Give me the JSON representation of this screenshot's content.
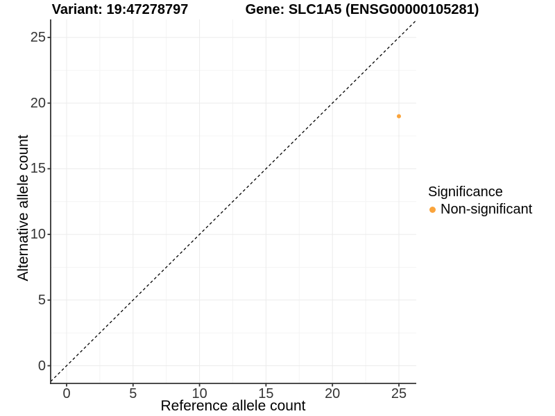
{
  "colors": {
    "background": "#ffffff",
    "axis": "#333333",
    "tick_text": "#333333",
    "grid_major": "#ebebeb",
    "grid_minor": "#f4f4f4",
    "identity_line": "#000000",
    "significant_orange": "#faa43c"
  },
  "chart_data": {
    "type": "scatter",
    "titles": {
      "variant": "Variant: 19:47278797",
      "gene": "Gene: SLC1A5 (ENSG00000105281)"
    },
    "xlabel": "Reference allele count",
    "ylabel": "Alternative allele count",
    "x_ticks": [
      0,
      5,
      10,
      15,
      20,
      25
    ],
    "y_ticks": [
      0,
      5,
      10,
      15,
      20,
      25
    ],
    "xlim": [
      -1.2,
      26.3
    ],
    "ylim": [
      -1.35,
      26.37
    ],
    "grid": {
      "major": true,
      "minor": true
    },
    "identity_line": {
      "show": true,
      "style": "dashed",
      "color": "#000000",
      "equation": "y = x"
    },
    "legend": {
      "title": "Significance",
      "position": "right",
      "items": [
        {
          "label": "Non-significant",
          "color": "#faa43c"
        }
      ]
    },
    "series": [
      {
        "name": "Non-significant",
        "color": "#faa43c",
        "marker": "circle",
        "size": 3,
        "points": [
          [
            25,
            19
          ]
        ]
      }
    ]
  }
}
